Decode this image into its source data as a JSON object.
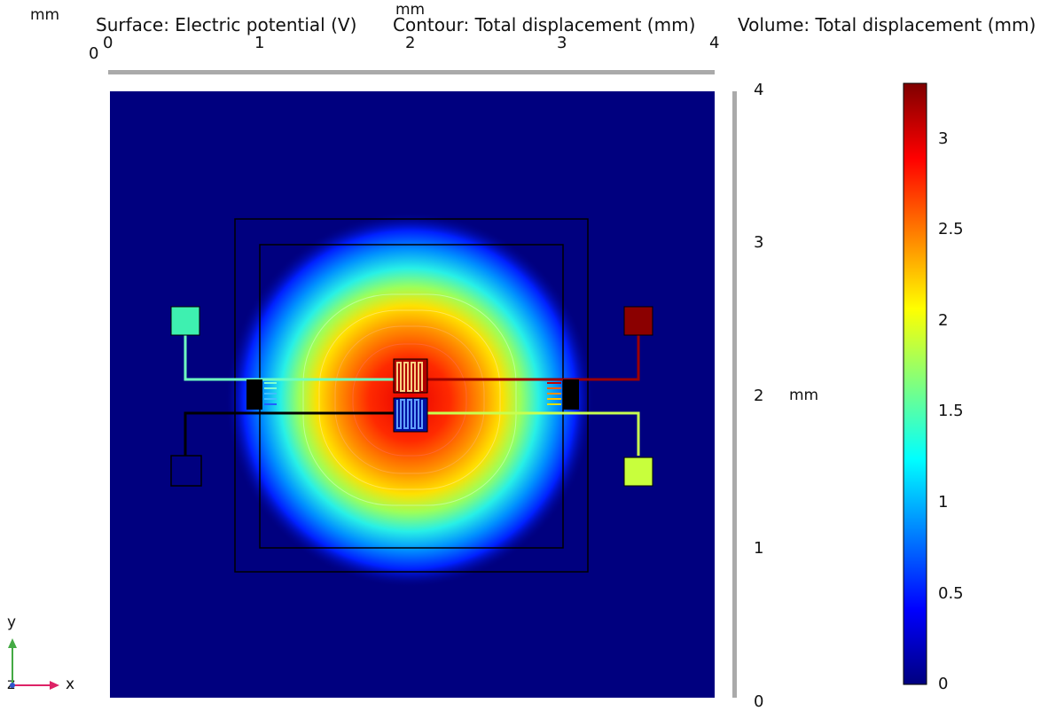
{
  "plot": {
    "title_surface": "Surface: Electric potential (V)",
    "title_contour": "Contour: Total displacement (mm)",
    "title_volume": "Volume: Total displacement (mm)",
    "unit_topleft": "mm",
    "unit_top": "mm",
    "unit_right": "mm",
    "origin_label": "0",
    "x_ticks": [
      "0",
      "1",
      "2",
      "3",
      "4"
    ],
    "y_ticks": [
      "0",
      "1",
      "2",
      "3",
      "4"
    ],
    "triad": {
      "y": "y",
      "z": "z",
      "x": "x"
    }
  },
  "colorbar": {
    "ticks": [
      "0",
      "0.5",
      "1",
      "1.5",
      "2",
      "2.5",
      "3"
    ],
    "colormap": "rainbow",
    "colors": [
      "#00007f",
      "#0000ff",
      "#007fff",
      "#00ffff",
      "#7fff7f",
      "#ffff00",
      "#ff7f00",
      "#ff0000",
      "#7f0000"
    ]
  },
  "chart_data": {
    "type": "heatmap",
    "title": "Surface: Electric potential (V)  Contour: Total displacement (mm)  Volume: Total displacement (mm)",
    "xlabel": "mm",
    "ylabel": "mm",
    "xlim": [
      0,
      4
    ],
    "ylim": [
      0,
      4
    ],
    "colorbar_range": [
      0,
      3.3
    ],
    "field_peak": {
      "x": 2.0,
      "y": 2.05,
      "value": 3.3
    },
    "pads": [
      {
        "name": "top-left pad",
        "x": 0.5,
        "y": 2.5,
        "value": 1.3
      },
      {
        "name": "top-right pad",
        "x": 3.5,
        "y": 2.5,
        "value": 3.3
      },
      {
        "name": "bottom-left pad",
        "x": 0.5,
        "y": 1.5,
        "value": 0
      },
      {
        "name": "bottom-right pad",
        "x": 3.5,
        "y": 1.5,
        "value": 1.8
      }
    ]
  }
}
